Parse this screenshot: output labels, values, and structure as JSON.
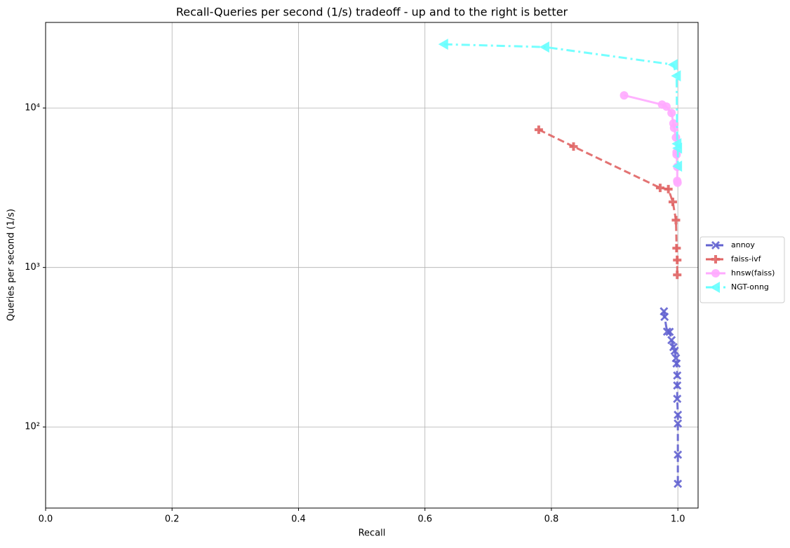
{
  "chart_data": {
    "type": "line",
    "title": "Recall-Queries per second (1/s) tradeoff - up and to the right is better",
    "xlabel": "Recall",
    "ylabel": "Queries per second (1/s)",
    "xlim": [
      0,
      1.032
    ],
    "ylim": [
      31,
      34400
    ],
    "yscale": "log",
    "grid": true,
    "legend": "right",
    "xticks": [
      {
        "value": 0,
        "label": "0.0"
      },
      0.2,
      0.4,
      0.6,
      0.8,
      {
        "value": 1,
        "label": "1.0"
      }
    ],
    "yticks": [
      {
        "value": 100,
        "label": "10²"
      },
      {
        "value": 1000,
        "label": "10³"
      },
      {
        "value": 10000,
        "label": "10⁴"
      }
    ],
    "series": [
      {
        "name": "annoy",
        "color": "#6262d0",
        "marker": "x",
        "linestyle": "dash",
        "x": [
          0.978,
          0.979,
          0.983,
          0.987,
          0.99,
          0.993,
          0.995,
          0.997,
          0.998,
          0.999,
          0.999,
          0.999,
          1.0,
          1.0,
          1.0,
          1.0
        ],
        "values": [
          531,
          490,
          396,
          395,
          350,
          317,
          300,
          270,
          250,
          210,
          182,
          150,
          119,
          105,
          67,
          44
        ]
      },
      {
        "name": "faiss-ivf",
        "color": "#e06464",
        "marker": "plus",
        "linestyle": "dash",
        "x": [
          0.78,
          0.835,
          0.972,
          0.985,
          0.992,
          0.997,
          0.998,
          0.999,
          0.999
        ],
        "values": [
          7310,
          5730,
          3155,
          3100,
          2576,
          1981,
          1321,
          1112,
          899
        ]
      },
      {
        "name": "hnsw(faiss)",
        "color": "#ffaaff",
        "marker": "circle",
        "linestyle": "solid",
        "x": [
          0.915,
          0.975,
          0.982,
          0.99,
          0.993,
          0.994,
          0.997,
          0.998,
          0.998,
          0.999,
          0.999,
          0.9995
        ],
        "values": [
          12000,
          10500,
          10200,
          9300,
          8000,
          7500,
          6530,
          5285,
          5100,
          4275,
          3490,
          3400
        ]
      },
      {
        "name": "NGT-onng",
        "color": "#66ffff",
        "marker": "triangle-left",
        "linestyle": "dashdot",
        "x": [
          0.63,
          0.79,
          0.993,
          0.998,
          0.999,
          1.0,
          1.0
        ],
        "values": [
          25100,
          24100,
          18700,
          15900,
          5970,
          5600,
          4315
        ]
      }
    ]
  }
}
